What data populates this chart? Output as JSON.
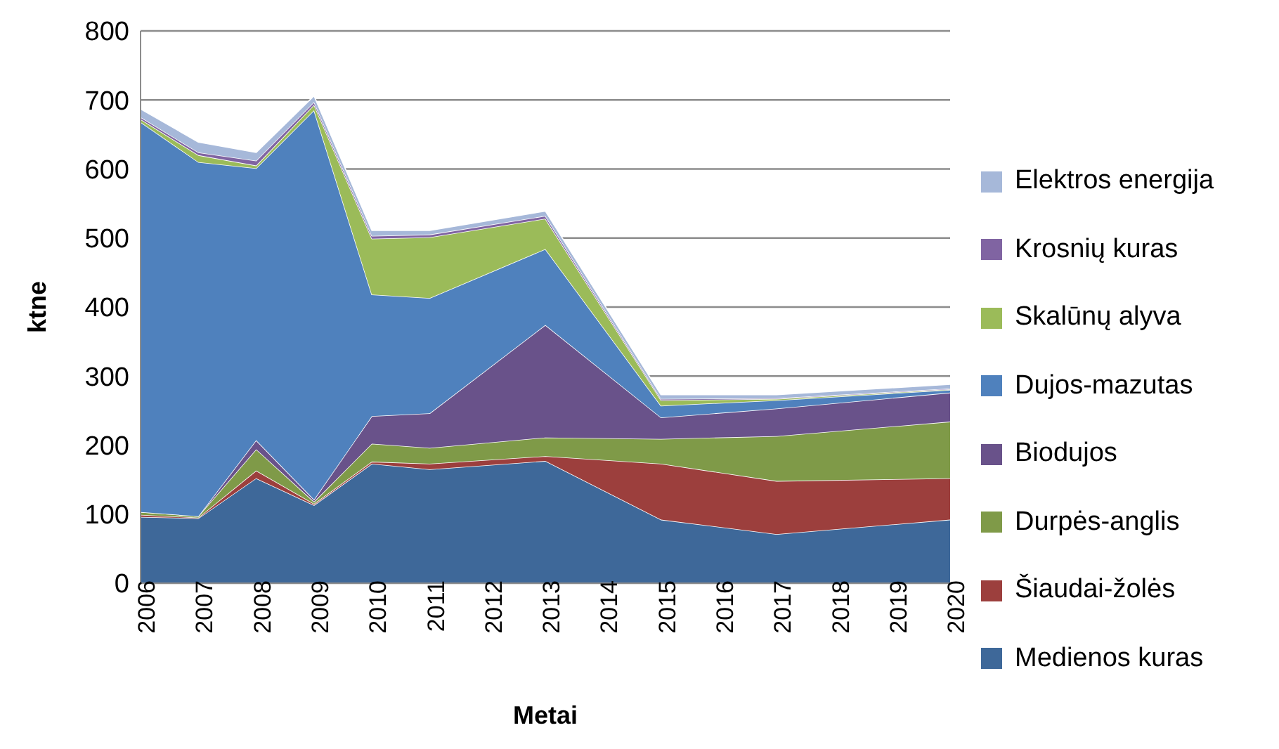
{
  "chart_data": {
    "type": "area",
    "stacked": true,
    "xlabel": "Metai",
    "ylabel": "ktne",
    "x": [
      2006,
      2007,
      2008,
      2009,
      2010,
      2011,
      2013,
      2015,
      2017,
      2020
    ],
    "xlim": [
      2006,
      2020
    ],
    "xticks": [
      2006,
      2007,
      2008,
      2009,
      2010,
      2011,
      2012,
      2013,
      2014,
      2015,
      2016,
      2017,
      2018,
      2019,
      2020
    ],
    "ylim": [
      0,
      800
    ],
    "yticks": [
      0,
      100,
      200,
      300,
      400,
      500,
      600,
      700,
      800
    ],
    "grid": "y",
    "legend": "right",
    "series": [
      {
        "name": "Medienos kuras",
        "color": "#3e6899",
        "values": [
          96,
          94,
          152,
          113,
          173,
          165,
          177,
          92,
          71,
          92
        ]
      },
      {
        "name": "Šiaudai-žolės",
        "color": "#9c3f3d",
        "values": [
          3,
          1,
          11,
          2,
          3,
          8,
          7,
          81,
          77,
          60
        ]
      },
      {
        "name": "Durpės-anglis",
        "color": "#7f9a48",
        "values": [
          4,
          2,
          31,
          3,
          26,
          23,
          27,
          36,
          65,
          82
        ]
      },
      {
        "name": "Biodujos",
        "color": "#69528a",
        "values": [
          0,
          0,
          13,
          3,
          40,
          50,
          163,
          31,
          40,
          42
        ]
      },
      {
        "name": "Dujos-mazutas",
        "color": "#4f81bd",
        "values": [
          565,
          513,
          394,
          564,
          176,
          167,
          110,
          17,
          12,
          4
        ]
      },
      {
        "name": "Skalūnų alyva",
        "color": "#9bbb59",
        "values": [
          4,
          10,
          4,
          8,
          81,
          88,
          44,
          8,
          2,
          1
        ]
      },
      {
        "name": "Krosnių kuras",
        "color": "#8064a2",
        "values": [
          3,
          4,
          7,
          4,
          4,
          4,
          4,
          2,
          1,
          1
        ]
      },
      {
        "name": "Elektros energija",
        "color": "#a6b8d9",
        "values": [
          12,
          15,
          12,
          9,
          8,
          6,
          7,
          6,
          5,
          6
        ]
      }
    ]
  }
}
